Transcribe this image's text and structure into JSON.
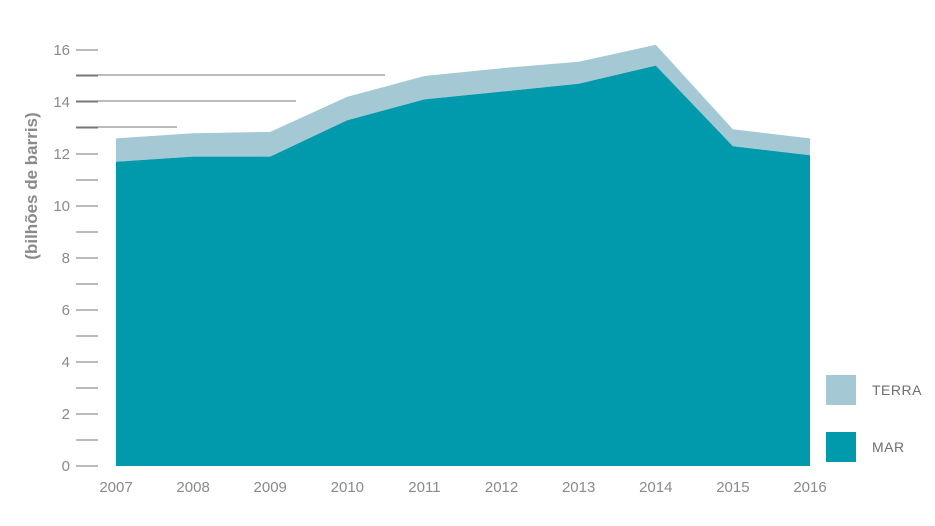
{
  "chart_data": {
    "type": "area",
    "stacked": true,
    "x": [
      "2007",
      "2008",
      "2009",
      "2010",
      "2011",
      "2012",
      "2013",
      "2014",
      "2015",
      "2016"
    ],
    "series": [
      {
        "name": "MAR",
        "color": "#009aac",
        "values": [
          11.7,
          11.9,
          11.9,
          13.3,
          14.1,
          14.4,
          14.7,
          15.4,
          12.3,
          11.95
        ]
      },
      {
        "name": "TERRA",
        "color": "#a5c9d4",
        "values": [
          0.9,
          0.9,
          0.95,
          0.9,
          0.9,
          0.9,
          0.85,
          0.8,
          0.65,
          0.65
        ]
      }
    ],
    "ylabel": "(bilhões de barris)",
    "xlabel": "",
    "ylim": [
      0,
      16
    ],
    "yticks": [
      "0",
      "2",
      "4",
      "6",
      "8",
      "10",
      "12",
      "14",
      "16"
    ],
    "grid": false,
    "legend_position": "bottom-right"
  }
}
